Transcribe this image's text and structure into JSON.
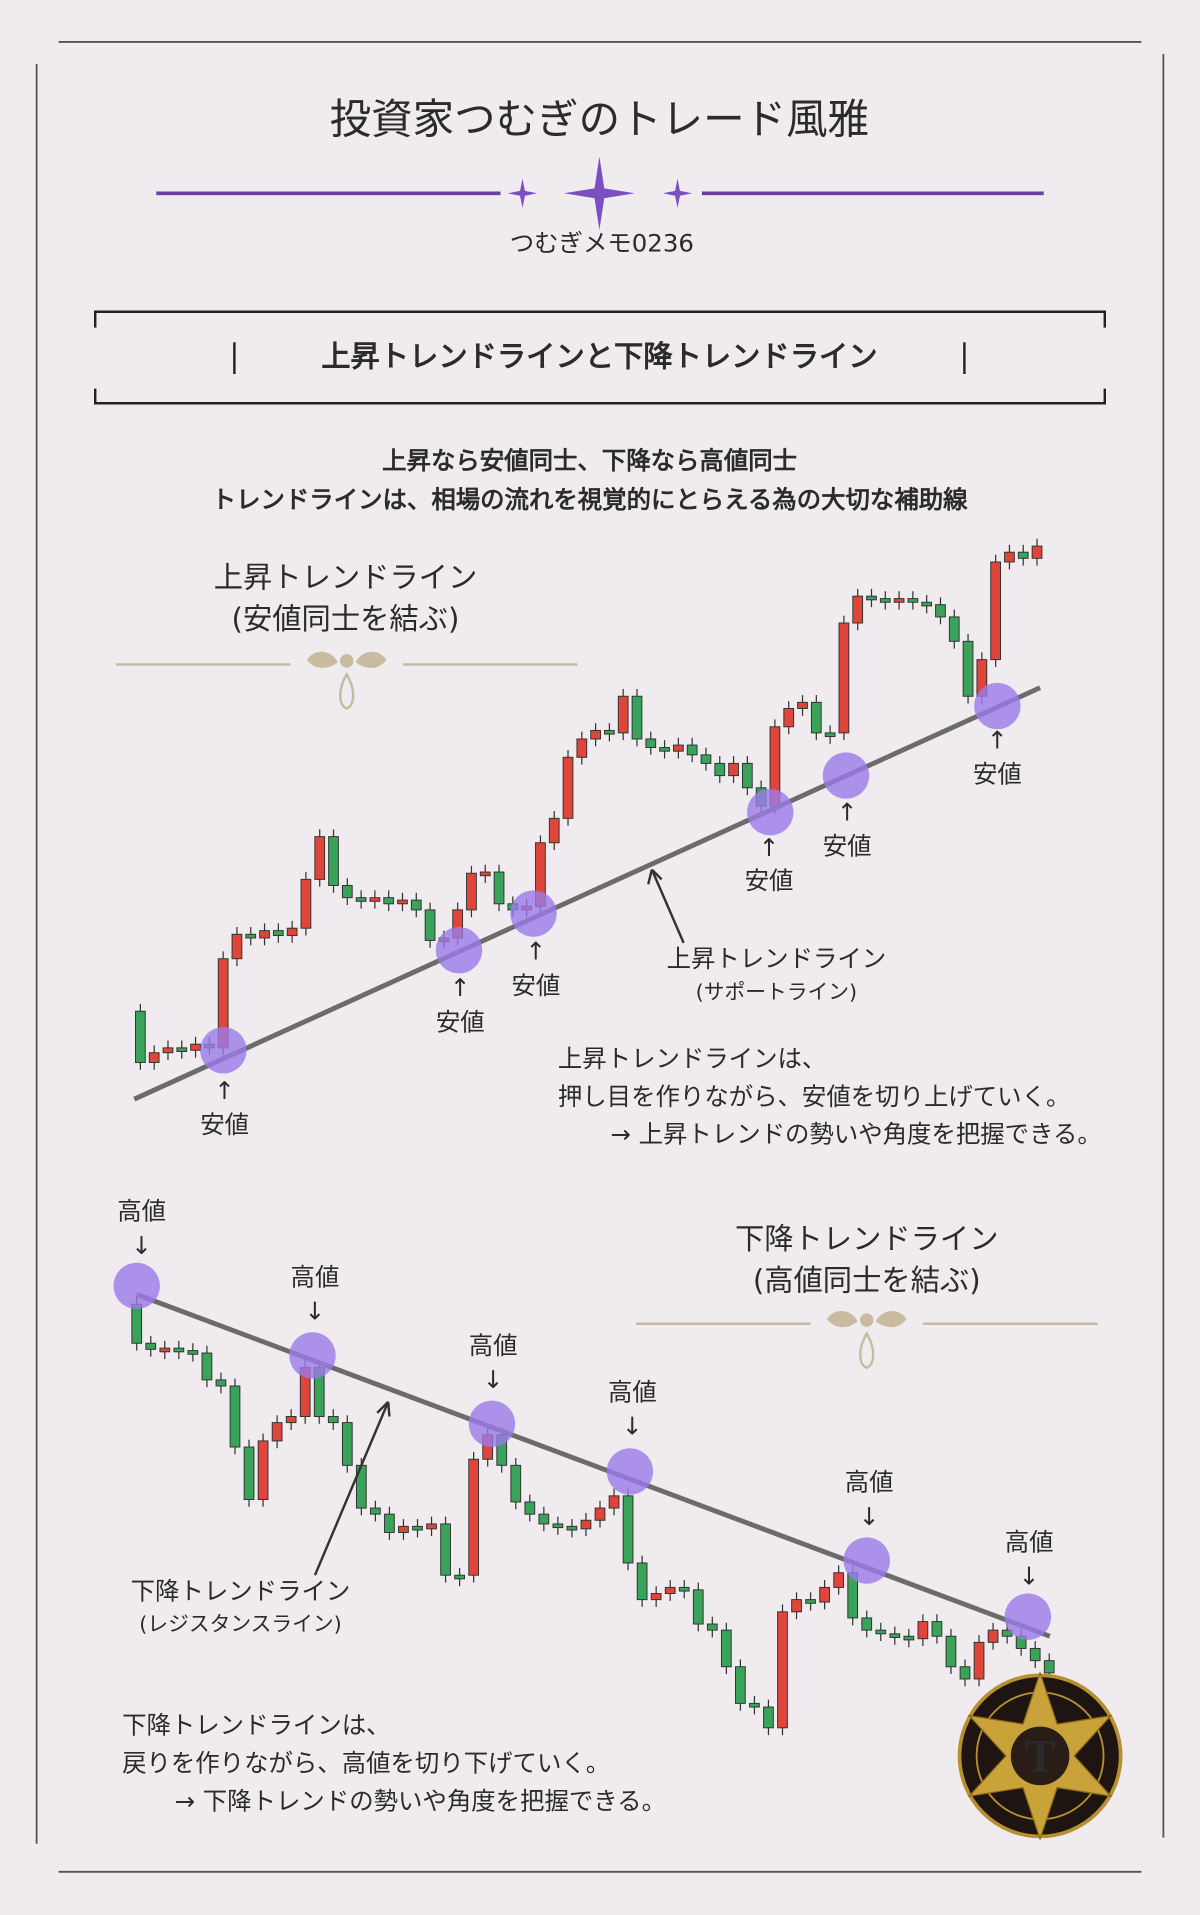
{
  "header": {
    "title": "投資家つむぎのトレード風雅",
    "memo": "つむぎメモ0236"
  },
  "section": {
    "heading": "上昇トレンドラインと下降トレンドライン"
  },
  "intro": [
    "上昇なら安値同士、下降なら高値同士",
    "トレンドラインは、相場の流れを視覚的にとらえる為の大切な補助線"
  ],
  "uptrend": {
    "title": "上昇トレンドライン",
    "subtitle": "(安値同士を結ぶ)",
    "point_labels": [
      "安値",
      "安値",
      "安値",
      "安値",
      "安値",
      "安値"
    ],
    "line_label": "上昇トレンドライン",
    "line_sublabel": "(サポートライン)",
    "explanation": [
      "上昇トレンドラインは、",
      "押し目を作りながら、安値を切り上げていく。",
      "→ 上昇トレンドの勢いや角度を把握できる。"
    ]
  },
  "downtrend": {
    "title": "下降トレンドライン",
    "subtitle": "(高値同士を結ぶ)",
    "point_labels": [
      "高値",
      "高値",
      "高値",
      "高値",
      "高値",
      "高値"
    ],
    "line_label": "下降トレンドライン",
    "line_sublabel": "(レジスタンスライン)",
    "explanation": [
      "下降トレンドラインは、",
      "戻りを作りながら、高値を切り下げていく。",
      "→ 下降トレンドの勢いや角度を把握できる。"
    ]
  }
}
